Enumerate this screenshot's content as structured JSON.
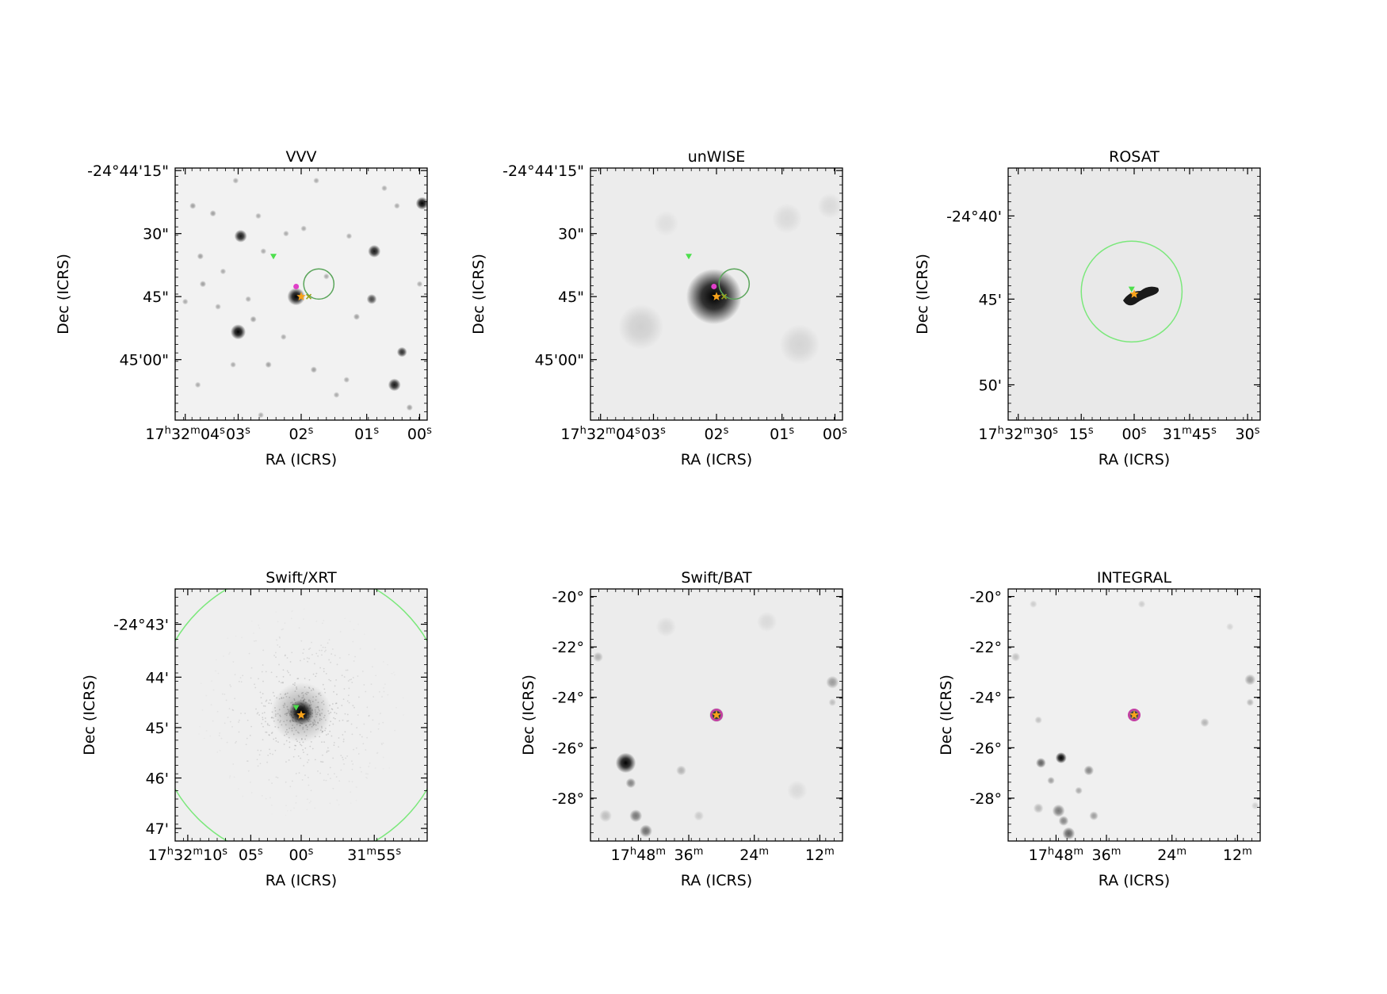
{
  "panels": [
    {
      "title": "VVV",
      "xlabel": "RA (ICRS)",
      "ylabel": "Dec (ICRS)",
      "xticks": [
        {
          "h": "17",
          "hs": "h",
          "m": "32",
          "ms": "m",
          "s": "04",
          "ss": "s"
        },
        {
          "s": "03",
          "ss": "s"
        },
        {
          "s": "02",
          "ss": "s"
        },
        {
          "s": "01",
          "ss": "s"
        },
        {
          "s": "00",
          "ss": "s"
        }
      ],
      "yticks": [
        "-24°44'15\"",
        "30\"",
        "45\"",
        "45'00\""
      ],
      "background": "#f2f2f2",
      "sources": [
        [
          0.48,
          0.51,
          0.035,
          1
        ],
        [
          0.25,
          0.65,
          0.03,
          1
        ],
        [
          0.26,
          0.27,
          0.025,
          0.9
        ],
        [
          0.79,
          0.33,
          0.025,
          0.9
        ],
        [
          0.98,
          0.14,
          0.025,
          1
        ],
        [
          0.87,
          0.86,
          0.025,
          0.9
        ],
        [
          0.9,
          0.73,
          0.02,
          0.8
        ],
        [
          0.78,
          0.52,
          0.02,
          0.7
        ],
        [
          0.07,
          0.15,
          0.013,
          0.35
        ],
        [
          0.15,
          0.18,
          0.013,
          0.35
        ],
        [
          0.33,
          0.19,
          0.012,
          0.3
        ],
        [
          0.44,
          0.26,
          0.012,
          0.3
        ],
        [
          0.35,
          0.33,
          0.012,
          0.3
        ],
        [
          0.1,
          0.35,
          0.013,
          0.35
        ],
        [
          0.19,
          0.41,
          0.012,
          0.3
        ],
        [
          0.11,
          0.46,
          0.013,
          0.35
        ],
        [
          0.04,
          0.53,
          0.012,
          0.3
        ],
        [
          0.17,
          0.55,
          0.012,
          0.3
        ],
        [
          0.29,
          0.52,
          0.012,
          0.3
        ],
        [
          0.31,
          0.6,
          0.013,
          0.35
        ],
        [
          0.43,
          0.67,
          0.012,
          0.3
        ],
        [
          0.37,
          0.78,
          0.013,
          0.35
        ],
        [
          0.23,
          0.78,
          0.012,
          0.3
        ],
        [
          0.55,
          0.8,
          0.013,
          0.35
        ],
        [
          0.64,
          0.9,
          0.012,
          0.3
        ],
        [
          0.72,
          0.59,
          0.013,
          0.35
        ],
        [
          0.6,
          0.43,
          0.012,
          0.3
        ],
        [
          0.56,
          0.05,
          0.012,
          0.3
        ],
        [
          0.88,
          0.15,
          0.012,
          0.3
        ],
        [
          0.93,
          0.95,
          0.013,
          0.35
        ],
        [
          0.34,
          0.98,
          0.012,
          0.3
        ],
        [
          0.09,
          0.86,
          0.012,
          0.3
        ],
        [
          0.51,
          0.24,
          0.012,
          0.3
        ],
        [
          0.69,
          0.27,
          0.012,
          0.3
        ],
        [
          0.83,
          0.08,
          0.012,
          0.3
        ],
        [
          0.97,
          0.46,
          0.012,
          0.3
        ],
        [
          0.68,
          0.84,
          0.012,
          0.3
        ],
        [
          0.24,
          0.05,
          0.012,
          0.3
        ]
      ],
      "markers": {
        "triangle": [
          0.39,
          0.35
        ],
        "circle": {
          "x": 0.57,
          "y": 0.46,
          "r": 0.06
        },
        "magenta": [
          0.48,
          0.47
        ],
        "star": [
          0.5,
          0.51
        ],
        "cross": [
          0.53,
          0.51
        ]
      }
    },
    {
      "title": "unWISE",
      "xlabel": "RA (ICRS)",
      "ylabel": "Dec (ICRS)",
      "xticks": [
        {
          "h": "17",
          "hs": "h",
          "m": "32",
          "ms": "m",
          "s": "04",
          "ss": "s"
        },
        {
          "s": "03",
          "ss": "s"
        },
        {
          "s": "02",
          "ss": "s"
        },
        {
          "s": "01",
          "ss": "s"
        },
        {
          "s": "00",
          "ss": "s"
        }
      ],
      "yticks": [
        "-24°44'15\"",
        "30\"",
        "45\"",
        "45'00\""
      ],
      "background": "#ececec",
      "sources": [
        [
          0.49,
          0.51,
          0.11,
          1
        ],
        [
          0.2,
          0.63,
          0.09,
          0.12
        ],
        [
          0.83,
          0.7,
          0.08,
          0.1
        ],
        [
          0.78,
          0.2,
          0.06,
          0.08
        ],
        [
          0.95,
          0.15,
          0.05,
          0.08
        ],
        [
          0.3,
          0.22,
          0.05,
          0.06
        ]
      ],
      "markers": {
        "triangle": [
          0.39,
          0.35
        ],
        "circle": {
          "x": 0.57,
          "y": 0.46,
          "r": 0.06
        },
        "magenta": [
          0.49,
          0.47
        ],
        "star": [
          0.5,
          0.51
        ],
        "cross": [
          0.53,
          0.51
        ]
      }
    },
    {
      "title": "ROSAT",
      "xlabel": "RA (ICRS)",
      "ylabel": "Dec (ICRS)",
      "xticks": [
        {
          "h": "17",
          "hs": "h",
          "m": "32",
          "ms": "m",
          "s": "30",
          "ss": "s"
        },
        {
          "s": "15",
          "ss": "s"
        },
        {
          "s": "00",
          "ss": "s"
        },
        {
          "m": "31",
          "ms": "m",
          "s": "45",
          "ss": "s"
        },
        {
          "s": "30",
          "ss": "s"
        }
      ],
      "yticks": [
        "-24°40'",
        "45'",
        "50'"
      ],
      "background": "#e9e9e9",
      "sources": [],
      "blob": true,
      "markers": {
        "circle": {
          "x": 0.49,
          "y": 0.49,
          "r": 0.2
        },
        "triangle": [
          0.49,
          0.48
        ],
        "star": [
          0.5,
          0.5
        ]
      }
    },
    {
      "title": "Swift/XRT",
      "xlabel": "RA (ICRS)",
      "ylabel": "Dec (ICRS)",
      "xticks": [
        {
          "h": "17",
          "hs": "h",
          "m": "32",
          "ms": "m",
          "s": "10",
          "ss": "s"
        },
        {
          "s": "05",
          "ss": "s"
        },
        {
          "s": "00",
          "ss": "s"
        },
        {
          "m": "31",
          "ms": "m",
          "s": "55",
          "ss": "s"
        }
      ],
      "yticks": [
        "-24°43'",
        "44'",
        "45'",
        "46'",
        "47'"
      ],
      "background": "#efefef",
      "sources": [
        [
          0.5,
          0.49,
          0.05,
          1
        ],
        [
          0.5,
          0.49,
          0.12,
          0.25
        ]
      ],
      "noise": true,
      "markers": {
        "circle": {
          "x": 0.5,
          "y": 0.5,
          "r": 0.58
        },
        "triangle": [
          0.48,
          0.47
        ],
        "star": [
          0.5,
          0.5
        ]
      }
    },
    {
      "title": "Swift/BAT",
      "xlabel": "RA (ICRS)",
      "ylabel": "Dec (ICRS)",
      "xticks": [
        {
          "h": "17",
          "hs": "h",
          "m": "48",
          "ms": "m"
        },
        {
          "h": "36",
          "hs": "m"
        },
        {
          "h": "24",
          "hs": "m"
        },
        {
          "h": "12",
          "hs": "m"
        }
      ],
      "yticks": [
        "-20°",
        "-22°",
        "-24°",
        "-26°",
        "-28°"
      ],
      "background": "#ececec",
      "sources": [
        [
          0.5,
          0.5,
          0.028,
          1
        ],
        [
          0.14,
          0.69,
          0.04,
          1
        ],
        [
          0.16,
          0.77,
          0.02,
          0.45
        ],
        [
          0.18,
          0.9,
          0.025,
          0.5
        ],
        [
          0.22,
          0.96,
          0.025,
          0.55
        ],
        [
          0.36,
          0.72,
          0.02,
          0.25
        ],
        [
          0.03,
          0.27,
          0.02,
          0.25
        ],
        [
          0.96,
          0.37,
          0.025,
          0.35
        ],
        [
          0.96,
          0.45,
          0.015,
          0.2
        ],
        [
          0.06,
          0.9,
          0.025,
          0.2
        ],
        [
          0.43,
          0.9,
          0.02,
          0.15
        ],
        [
          0.7,
          0.13,
          0.04,
          0.08
        ],
        [
          0.3,
          0.15,
          0.04,
          0.08
        ],
        [
          0.82,
          0.8,
          0.04,
          0.08
        ]
      ],
      "markers": {
        "ring": {
          "x": 0.5,
          "y": 0.5,
          "r": 0.025
        },
        "star": [
          0.5,
          0.5
        ]
      }
    },
    {
      "title": "INTEGRAL",
      "xlabel": "RA (ICRS)",
      "ylabel": "Dec (ICRS)",
      "xticks": [
        {
          "h": "17",
          "hs": "h",
          "m": "48",
          "ms": "m"
        },
        {
          "h": "36",
          "hs": "m"
        },
        {
          "h": "24",
          "hs": "m"
        },
        {
          "h": "12",
          "hs": "m"
        }
      ],
      "yticks": [
        "-20°",
        "-22°",
        "-24°",
        "-26°",
        "-28°"
      ],
      "background": "#f0f0f0",
      "sources": [
        [
          0.5,
          0.5,
          0.025,
          1
        ],
        [
          0.21,
          0.67,
          0.022,
          1
        ],
        [
          0.13,
          0.69,
          0.02,
          0.6
        ],
        [
          0.17,
          0.76,
          0.015,
          0.35
        ],
        [
          0.2,
          0.88,
          0.025,
          0.5
        ],
        [
          0.22,
          0.92,
          0.02,
          0.45
        ],
        [
          0.24,
          0.97,
          0.025,
          0.6
        ],
        [
          0.32,
          0.72,
          0.02,
          0.45
        ],
        [
          0.34,
          0.9,
          0.018,
          0.35
        ],
        [
          0.28,
          0.8,
          0.015,
          0.3
        ],
        [
          0.12,
          0.87,
          0.02,
          0.25
        ],
        [
          0.03,
          0.27,
          0.018,
          0.2
        ],
        [
          0.12,
          0.52,
          0.015,
          0.2
        ],
        [
          0.96,
          0.36,
          0.022,
          0.35
        ],
        [
          0.96,
          0.45,
          0.015,
          0.25
        ],
        [
          0.78,
          0.53,
          0.018,
          0.25
        ],
        [
          0.53,
          0.06,
          0.015,
          0.15
        ],
        [
          0.1,
          0.06,
          0.015,
          0.15
        ],
        [
          0.88,
          0.15,
          0.015,
          0.12
        ],
        [
          0.98,
          0.86,
          0.015,
          0.15
        ]
      ],
      "markers": {
        "ring": {
          "x": 0.5,
          "y": 0.5,
          "r": 0.025
        },
        "star": [
          0.5,
          0.5
        ]
      }
    }
  ],
  "colors": {
    "region": "#7be87b",
    "triangle": "#4ddf4d",
    "star": "#f7a21b",
    "magenta": "#e040c8",
    "cross": "#9aa31c",
    "ring": "#c43ea3"
  }
}
